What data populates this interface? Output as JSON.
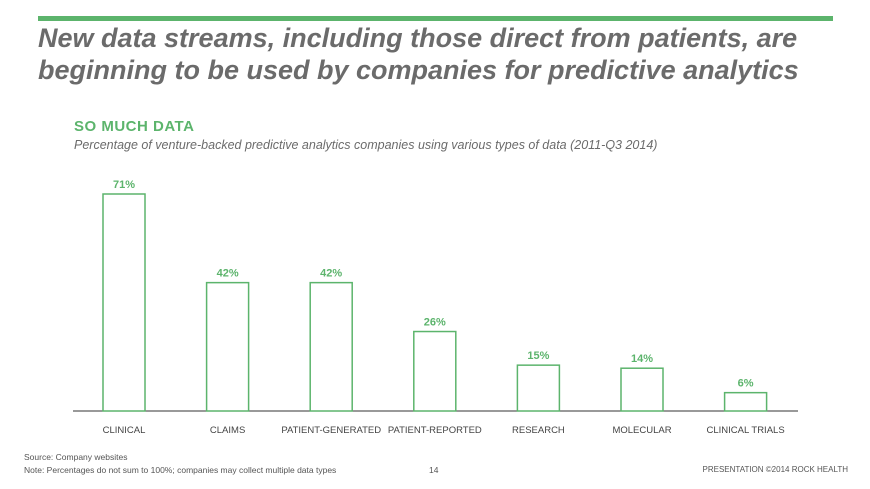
{
  "slide": {
    "headline_line1": "New data streams, including those direct from patients, are",
    "headline_line2": "beginning to be used by companies for predictive analytics",
    "source": "Source: Company websites",
    "note": "Note: Percentages do not sum to 100%; companies may collect multiple data types",
    "page_number": "14",
    "footer_credit": "PRESENTATION ©2014 ROCK HEALTH"
  },
  "colors": {
    "accent": "#5cb46c",
    "headline": "#6b6b6b",
    "axis": "#333333"
  },
  "chart_data": {
    "type": "bar",
    "title": "SO MUCH DATA",
    "subtitle": "Percentage of venture-backed predictive analytics companies using various types of data (2011-Q3 2014)",
    "categories": [
      "CLINICAL",
      "CLAIMS",
      "PATIENT-GENERATED",
      "PATIENT-REPORTED",
      "RESEARCH",
      "MOLECULAR",
      "CLINICAL TRIALS"
    ],
    "values": [
      71,
      42,
      42,
      26,
      15,
      14,
      6
    ],
    "value_labels": [
      "71%",
      "42%",
      "42%",
      "26%",
      "15%",
      "14%",
      "6%"
    ],
    "ylim": [
      0,
      71
    ],
    "grid": false,
    "legend": "none"
  }
}
